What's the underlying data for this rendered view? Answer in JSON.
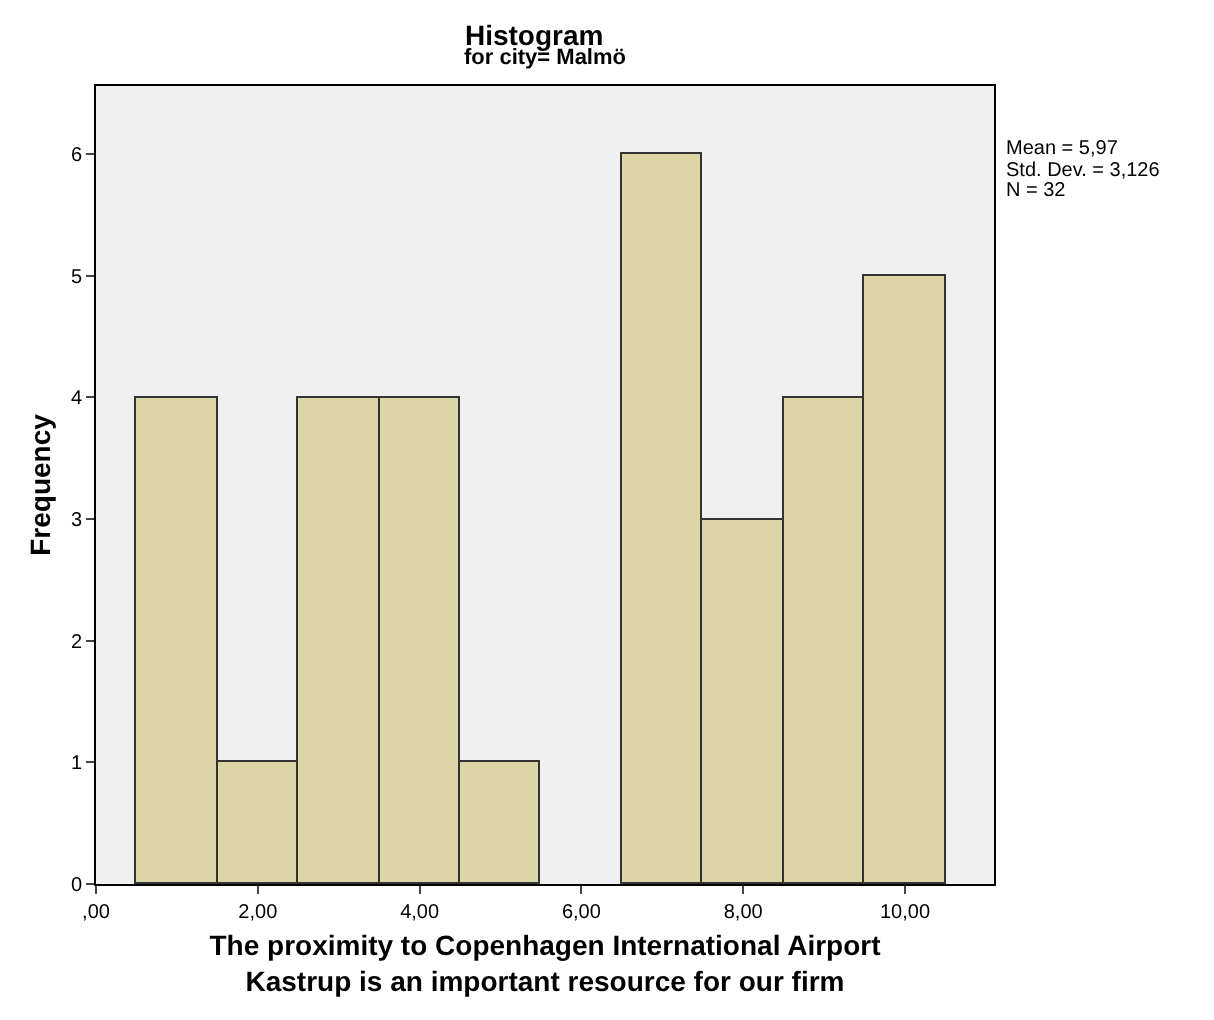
{
  "chart_data": {
    "type": "histogram",
    "title": "Histogram",
    "subtitle": "for city= Malmö",
    "xlabel": "The proximity to Copenhagen International Airport\nKastrup is an important resource for our firm",
    "ylabel": "Frequency",
    "bins": [
      0.5,
      1.5,
      2.5,
      3.5,
      4.5,
      5.5,
      6.5,
      7.5,
      8.5,
      9.5,
      10.5
    ],
    "values": [
      4,
      1,
      4,
      4,
      1,
      0,
      6,
      3,
      4,
      5
    ],
    "color": "#dcd6a6",
    "xlim": [
      0,
      11.1
    ],
    "ylim": [
      0,
      6.56
    ],
    "xticks": [
      {
        "value": 0,
        "label": ",00"
      },
      {
        "value": 2,
        "label": "2,00"
      },
      {
        "value": 4,
        "label": "4,00"
      },
      {
        "value": 6,
        "label": "6,00"
      },
      {
        "value": 8,
        "label": "8,00"
      },
      {
        "value": 10,
        "label": "10,00"
      }
    ],
    "yticks": [
      0,
      1,
      2,
      3,
      4,
      5,
      6
    ],
    "grid": false,
    "annotations": [
      "Mean = 5,97",
      "Std. Dev. = 3,126",
      "N = 32"
    ]
  }
}
